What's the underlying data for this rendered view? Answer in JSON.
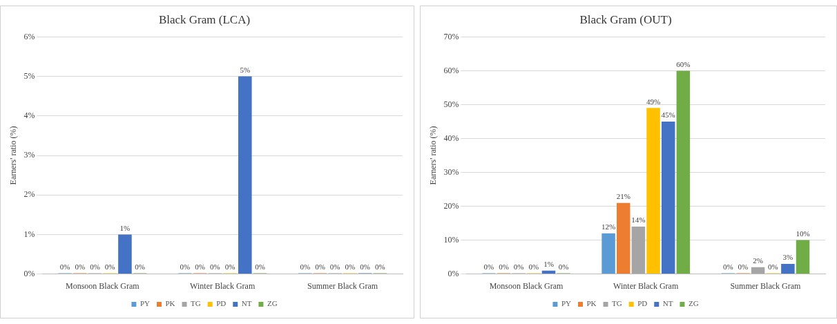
{
  "chart_data": [
    {
      "type": "bar",
      "title": "Black Gram (LCA)",
      "ylabel": "Earners' ratio (%)",
      "categories": [
        "Monsoon Black Gram",
        "Winter Black Gram",
        "Summer Black Gram"
      ],
      "ylim": [
        0,
        6
      ],
      "yticks": [
        {
          "value": 0,
          "label": "0%"
        },
        {
          "value": 1,
          "label": "1%"
        },
        {
          "value": 2,
          "label": "2%"
        },
        {
          "value": 3,
          "label": "3%"
        },
        {
          "value": 4,
          "label": "4%"
        },
        {
          "value": 5,
          "label": "5%"
        },
        {
          "value": 6,
          "label": "6%"
        }
      ],
      "grid": "y",
      "legend": "bottom",
      "series": [
        {
          "name": "PY",
          "color": "#5b9bd5",
          "values": [
            0,
            0,
            0
          ],
          "value_labels": [
            "0%",
            "0%",
            "0%"
          ]
        },
        {
          "name": "PK",
          "color": "#ed7d31",
          "values": [
            0,
            0,
            0
          ],
          "value_labels": [
            "0%",
            "0%",
            "0%"
          ]
        },
        {
          "name": "TG",
          "color": "#a5a5a5",
          "values": [
            0,
            0,
            0
          ],
          "value_labels": [
            "0%",
            "0%",
            "0%"
          ]
        },
        {
          "name": "PD",
          "color": "#ffc000",
          "values": [
            0,
            0,
            0
          ],
          "value_labels": [
            "0%",
            "0%",
            "0%"
          ]
        },
        {
          "name": "NT",
          "color": "#4472c4",
          "values": [
            1,
            5,
            0
          ],
          "value_labels": [
            "1%",
            "5%",
            "0%"
          ]
        },
        {
          "name": "ZG",
          "color": "#70ad47",
          "values": [
            0,
            0,
            0
          ],
          "value_labels": [
            "0%",
            "0%",
            "0%"
          ]
        }
      ]
    },
    {
      "type": "bar",
      "title": "Black Gram (OUT)",
      "ylabel": "Earners' ratio (%)",
      "categories": [
        "Monsoon Black Gram",
        "Winter Black Gram",
        "Summer Black Gram"
      ],
      "ylim": [
        0,
        70
      ],
      "yticks": [
        {
          "value": 0,
          "label": "0%"
        },
        {
          "value": 10,
          "label": "10%"
        },
        {
          "value": 20,
          "label": "20%"
        },
        {
          "value": 30,
          "label": "30%"
        },
        {
          "value": 40,
          "label": "40%"
        },
        {
          "value": 50,
          "label": "50%"
        },
        {
          "value": 60,
          "label": "60%"
        },
        {
          "value": 70,
          "label": "70%"
        }
      ],
      "grid": "y",
      "legend": "bottom",
      "series": [
        {
          "name": "PY",
          "color": "#5b9bd5",
          "values": [
            0,
            12,
            0
          ],
          "value_labels": [
            "0%",
            "12%",
            "0%"
          ]
        },
        {
          "name": "PK",
          "color": "#ed7d31",
          "values": [
            0,
            21,
            0
          ],
          "value_labels": [
            "0%",
            "21%",
            "0%"
          ]
        },
        {
          "name": "TG",
          "color": "#a5a5a5",
          "values": [
            0,
            14,
            2
          ],
          "value_labels": [
            "0%",
            "14%",
            "2%"
          ]
        },
        {
          "name": "PD",
          "color": "#ffc000",
          "values": [
            0,
            49,
            0
          ],
          "value_labels": [
            "0%",
            "49%",
            "0%"
          ]
        },
        {
          "name": "NT",
          "color": "#4472c4",
          "values": [
            1,
            45,
            3
          ],
          "value_labels": [
            "1%",
            "45%",
            "3%"
          ]
        },
        {
          "name": "ZG",
          "color": "#70ad47",
          "values": [
            0,
            60,
            10
          ],
          "value_labels": [
            "0%",
            "60%",
            "10%"
          ]
        }
      ]
    }
  ]
}
